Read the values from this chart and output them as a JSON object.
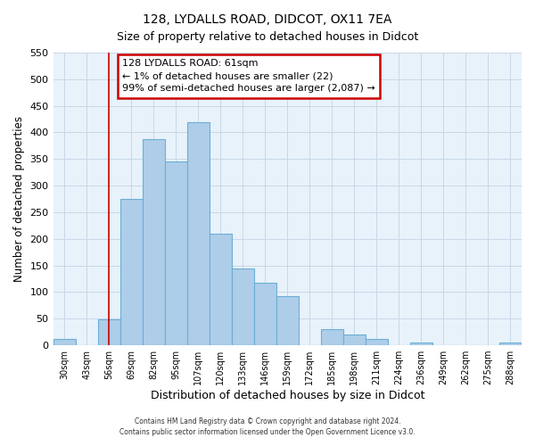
{
  "title": "128, LYDALLS ROAD, DIDCOT, OX11 7EA",
  "subtitle": "Size of property relative to detached houses in Didcot",
  "xlabel": "Distribution of detached houses by size in Didcot",
  "ylabel": "Number of detached properties",
  "bar_labels": [
    "30sqm",
    "43sqm",
    "56sqm",
    "69sqm",
    "82sqm",
    "95sqm",
    "107sqm",
    "120sqm",
    "133sqm",
    "146sqm",
    "159sqm",
    "172sqm",
    "185sqm",
    "198sqm",
    "211sqm",
    "224sqm",
    "236sqm",
    "249sqm",
    "262sqm",
    "275sqm",
    "288sqm"
  ],
  "bar_values": [
    12,
    0,
    48,
    275,
    388,
    345,
    420,
    210,
    145,
    118,
    92,
    0,
    30,
    20,
    12,
    0,
    5,
    0,
    0,
    0,
    5
  ],
  "bar_color": "#aecde8",
  "bar_edge_color": "#6baed6",
  "vline_x_index": 2,
  "vline_color": "#cc0000",
  "annotation_title": "128 LYDALLS ROAD: 61sqm",
  "annotation_line1": "← 1% of detached houses are smaller (22)",
  "annotation_line2": "99% of semi-detached houses are larger (2,087) →",
  "annotation_box_color": "#ffffff",
  "annotation_box_edge_color": "#cc0000",
  "ylim": [
    0,
    550
  ],
  "yticks": [
    0,
    50,
    100,
    150,
    200,
    250,
    300,
    350,
    400,
    450,
    500,
    550
  ],
  "footer1": "Contains HM Land Registry data © Crown copyright and database right 2024.",
  "footer2": "Contains public sector information licensed under the Open Government Licence v3.0."
}
